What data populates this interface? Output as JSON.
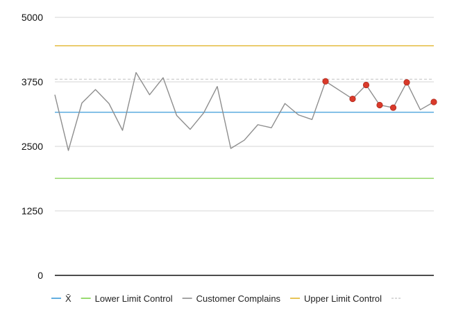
{
  "chart_data": {
    "type": "line",
    "ylim": [
      0,
      5000
    ],
    "yticks": [
      0,
      1250,
      2500,
      3750,
      5000
    ],
    "yticks_labels": [
      "0",
      "1250",
      "2500",
      "3750",
      "5000"
    ],
    "grid": true,
    "legend_position": "bottom-left",
    "x": [
      1,
      2,
      3,
      4,
      5,
      6,
      7,
      8,
      9,
      10,
      11,
      12,
      13,
      14,
      15,
      16,
      17,
      18,
      19,
      20,
      21,
      22,
      23,
      24,
      25,
      26,
      27,
      28,
      29
    ],
    "series": [
      {
        "name": "X̄",
        "color": "#3a9ad9",
        "style": "solid",
        "values": [
          3160,
          3160,
          3160,
          3160,
          3160,
          3160,
          3160,
          3160,
          3160,
          3160,
          3160,
          3160,
          3160,
          3160,
          3160,
          3160,
          3160,
          3160,
          3160,
          3160,
          3160,
          3160,
          3160,
          3160,
          3160,
          3160,
          3160,
          3160,
          3160
        ]
      },
      {
        "name": "Lower Limit Control",
        "color": "#7ed04b",
        "style": "solid",
        "values": [
          1880,
          1880,
          1880,
          1880,
          1880,
          1880,
          1880,
          1880,
          1880,
          1880,
          1880,
          1880,
          1880,
          1880,
          1880,
          1880,
          1880,
          1880,
          1880,
          1880,
          1880,
          1880,
          1880,
          1880,
          1880,
          1880,
          1880,
          1880,
          1880
        ]
      },
      {
        "name": "Customer Complains",
        "color": "#8e8e8e",
        "style": "solid",
        "values": [
          3500,
          2420,
          3340,
          3600,
          3330,
          2810,
          3930,
          3500,
          3830,
          3100,
          2830,
          3150,
          3660,
          2460,
          2620,
          2920,
          2860,
          3330,
          3110,
          3020,
          3760,
          3590,
          3420,
          3690,
          3300,
          3250,
          3740,
          3210,
          3360
        ],
        "highlighted_points": [
          21,
          23,
          24,
          25,
          26,
          27,
          29
        ],
        "highlight_color": "#d93a2b"
      },
      {
        "name": "Upper Limit Control",
        "color": "#e2b52d",
        "style": "solid",
        "values": [
          4450,
          4450,
          4450,
          4450,
          4450,
          4450,
          4450,
          4450,
          4450,
          4450,
          4450,
          4450,
          4450,
          4450,
          4450,
          4450,
          4450,
          4450,
          4450,
          4450,
          4450,
          4450,
          4450,
          4450,
          4450,
          4450,
          4450,
          4450,
          4450
        ]
      },
      {
        "name": "",
        "color": "#cccccc",
        "style": "dashed",
        "values": [
          3800,
          3800,
          3800,
          3800,
          3800,
          3800,
          3800,
          3800,
          3800,
          3800,
          3800,
          3800,
          3800,
          3800,
          3800,
          3800,
          3800,
          3800,
          3800,
          3800,
          3800,
          3800,
          3800,
          3800,
          3800,
          3800,
          3800,
          3800,
          3800
        ]
      }
    ]
  }
}
